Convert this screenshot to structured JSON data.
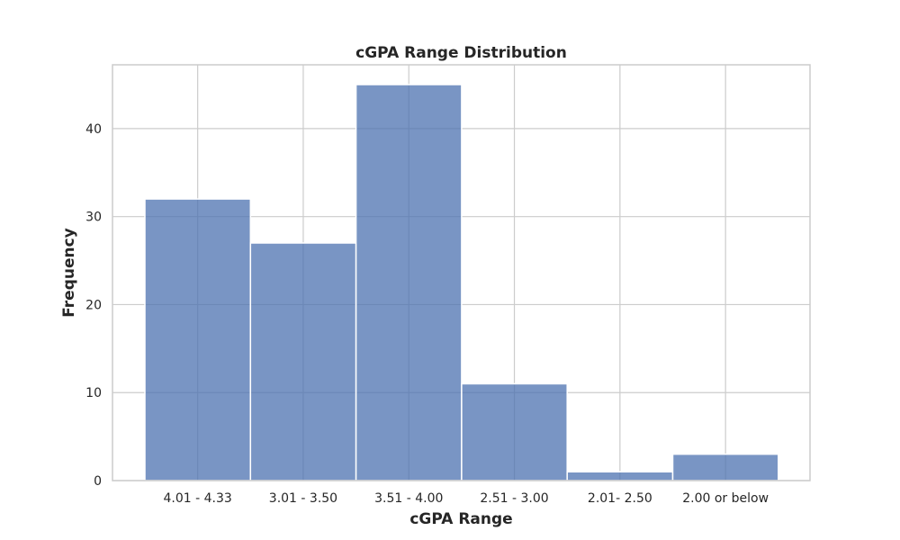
{
  "chart_data": {
    "type": "bar",
    "title": "cGPA Range Distribution",
    "xlabel": "cGPA Range",
    "ylabel": "Frequency",
    "categories": [
      "4.01 - 4.33",
      "3.01 - 3.50",
      "3.51 - 4.00",
      "2.51 - 3.00",
      "2.01- 2.50",
      "2.00 or below"
    ],
    "values": [
      32,
      27,
      45,
      11,
      1,
      3
    ],
    "ylim": [
      0,
      47.25
    ],
    "yticks": [
      0,
      10,
      20,
      30,
      40
    ],
    "grid": true,
    "colors": {
      "bar": "#4c72b0",
      "grid": "#cccccc",
      "axes_edge": "#cccccc",
      "text": "#262626"
    }
  }
}
